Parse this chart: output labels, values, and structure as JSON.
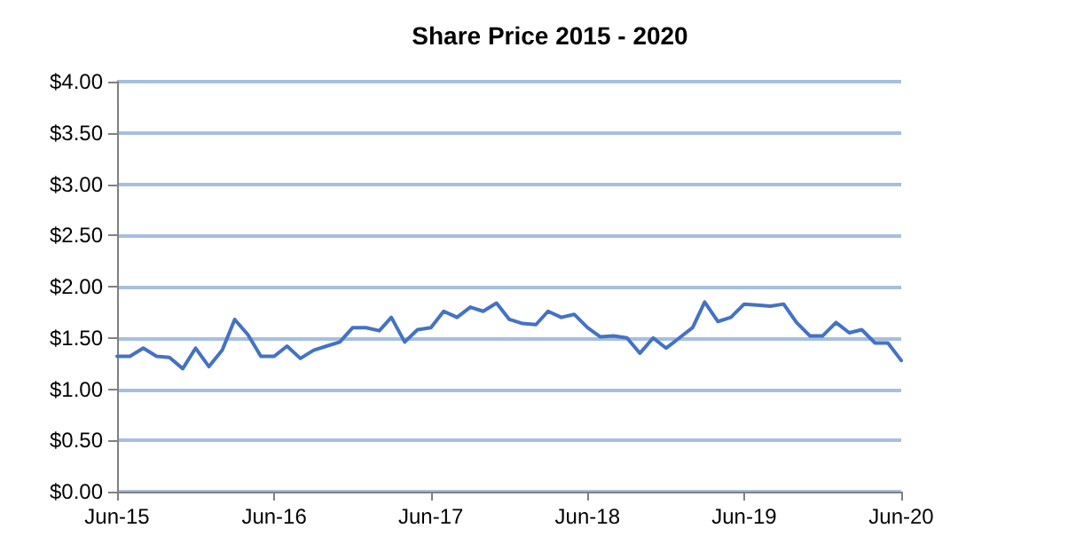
{
  "chart_data": {
    "type": "line",
    "title": "Share Price 2015 - 2020",
    "x": [
      "2015-06",
      "2015-07",
      "2015-08",
      "2015-09",
      "2015-10",
      "2015-11",
      "2015-12",
      "2016-01",
      "2016-02",
      "2016-03",
      "2016-04",
      "2016-05",
      "2016-06",
      "2016-07",
      "2016-08",
      "2016-09",
      "2016-10",
      "2016-11",
      "2016-12",
      "2017-01",
      "2017-02",
      "2017-03",
      "2017-04",
      "2017-05",
      "2017-06",
      "2017-07",
      "2017-08",
      "2017-09",
      "2017-10",
      "2017-11",
      "2017-12",
      "2018-01",
      "2018-02",
      "2018-03",
      "2018-04",
      "2018-05",
      "2018-06",
      "2018-07",
      "2018-08",
      "2018-09",
      "2018-10",
      "2018-11",
      "2018-12",
      "2019-01",
      "2019-02",
      "2019-03",
      "2019-04",
      "2019-05",
      "2019-06",
      "2019-07",
      "2019-08",
      "2019-09",
      "2019-10",
      "2019-11",
      "2019-12",
      "2020-01",
      "2020-02",
      "2020-03",
      "2020-04",
      "2020-05",
      "2020-06"
    ],
    "series": [
      {
        "color": "#4472c4",
        "values": [
          1.32,
          1.32,
          1.4,
          1.32,
          1.31,
          1.2,
          1.4,
          1.22,
          1.38,
          1.68,
          1.53,
          1.32,
          1.32,
          1.42,
          1.3,
          1.38,
          1.42,
          1.46,
          1.6,
          1.6,
          1.57,
          1.7,
          1.46,
          1.58,
          1.6,
          1.76,
          1.7,
          1.8,
          1.76,
          1.84,
          1.68,
          1.64,
          1.63,
          1.76,
          1.7,
          1.73,
          1.6,
          1.51,
          1.52,
          1.5,
          1.35,
          1.5,
          1.4,
          1.5,
          1.6,
          1.85,
          1.66,
          1.7,
          1.83,
          1.82,
          1.81,
          1.83,
          1.65,
          1.52,
          1.52,
          1.65,
          1.55,
          1.58,
          1.45,
          1.45,
          1.28
        ]
      }
    ],
    "xlim": [
      "2015-06",
      "2020-06"
    ],
    "xticks": [
      {
        "value": "2015-06",
        "label": "Jun-15"
      },
      {
        "value": "2016-06",
        "label": "Jun-16"
      },
      {
        "value": "2017-06",
        "label": "Jun-17"
      },
      {
        "value": "2018-06",
        "label": "Jun-18"
      },
      {
        "value": "2019-06",
        "label": "Jun-19"
      },
      {
        "value": "2020-06",
        "label": "Jun-20"
      }
    ],
    "ylim": [
      0,
      4
    ],
    "yticks": [
      {
        "value": 0,
        "label": "$0.00"
      },
      {
        "value": 0.5,
        "label": "$0.50"
      },
      {
        "value": 1,
        "label": "$1.00"
      },
      {
        "value": 1.5,
        "label": "$1.50"
      },
      {
        "value": 2,
        "label": "$2.00"
      },
      {
        "value": 2.5,
        "label": "$2.50"
      },
      {
        "value": 3,
        "label": "$3.00"
      },
      {
        "value": 3.5,
        "label": "$3.50"
      },
      {
        "value": 4,
        "label": "$4.00"
      }
    ],
    "grid": "y",
    "marker": "none",
    "line_style": "solid"
  }
}
